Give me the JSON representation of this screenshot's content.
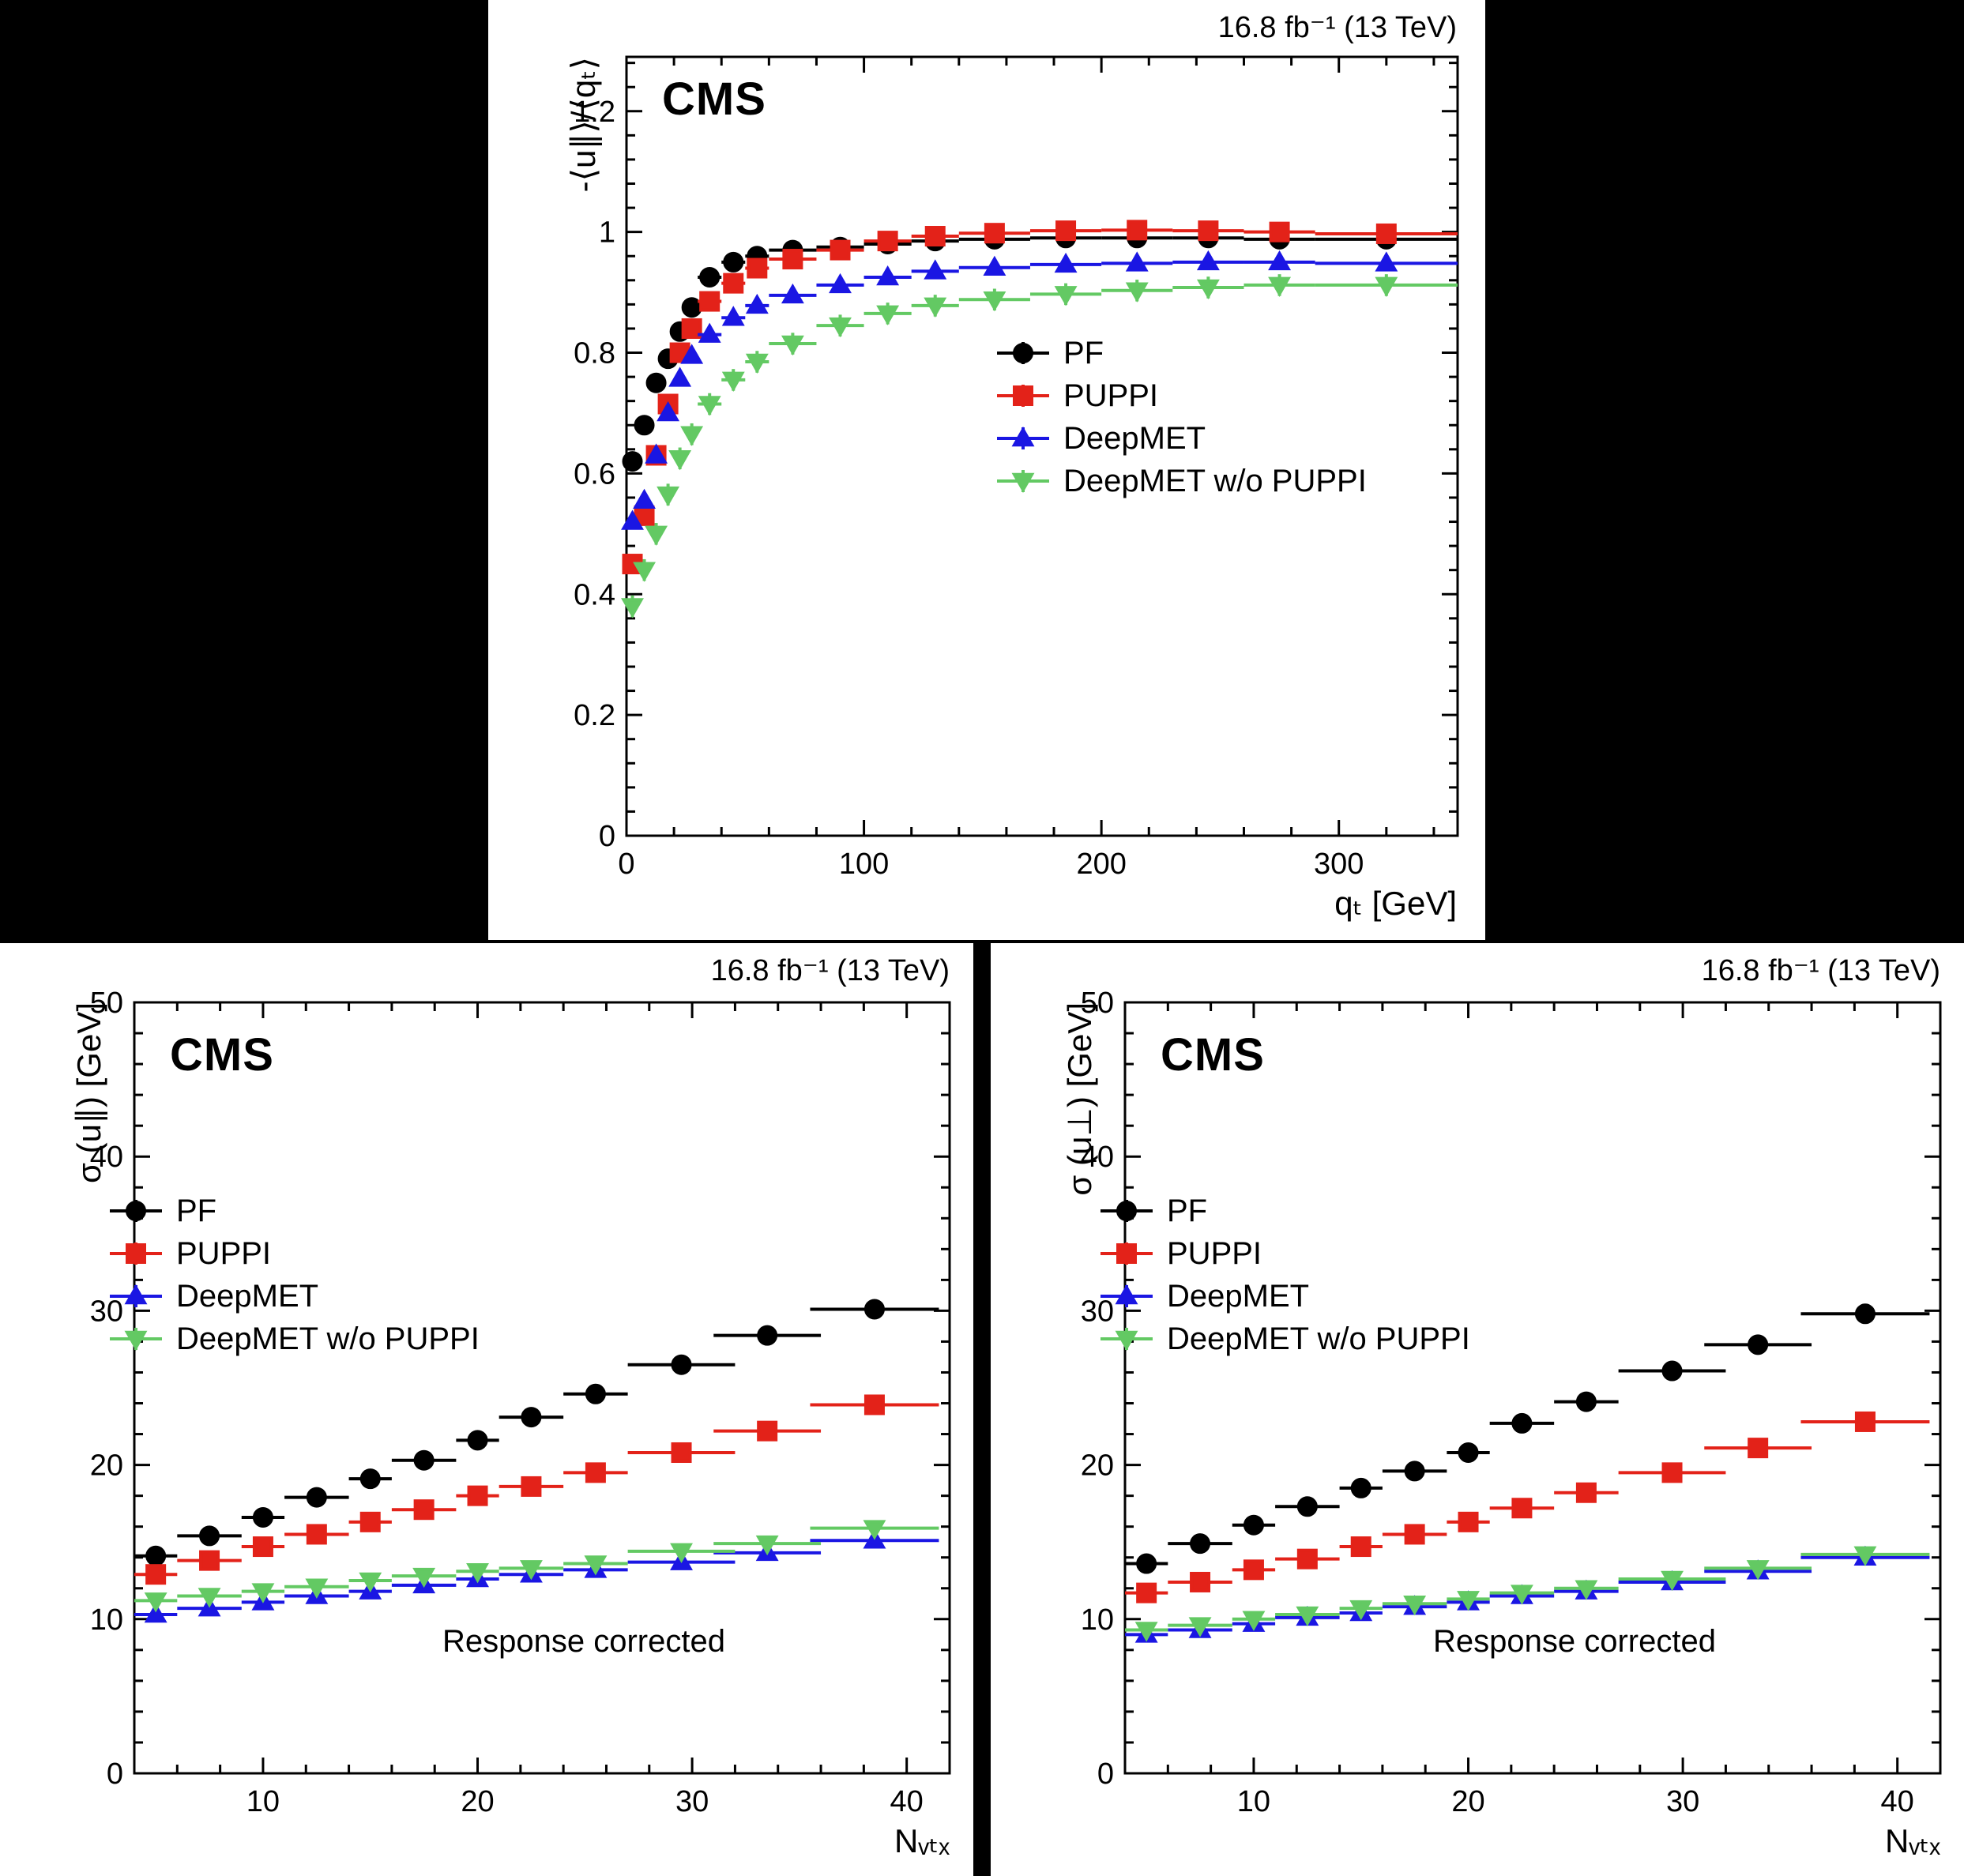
{
  "page_background": "#000000",
  "chart_data": [
    {
      "type": "scatter",
      "name": "response-vs-qt",
      "cms": "CMS",
      "lumi": "16.8 fb⁻¹ (13 TeV)",
      "xlabel": "qₜ [GeV]",
      "ylabel": "-⟨u∥⟩/⟨qₜ⟩",
      "xlim": [
        0,
        350
      ],
      "ylim": [
        0,
        1.29
      ],
      "xticks": [
        0,
        100,
        200,
        300
      ],
      "yticks": [
        0,
        0.2,
        0.4,
        0.6,
        0.8,
        1,
        1.2
      ],
      "x_minor_step": 20,
      "y_minor_step": 0.04,
      "x": [
        2.5,
        7.5,
        12.5,
        17.5,
        22.5,
        27.5,
        35,
        45,
        55,
        70,
        90,
        110,
        130,
        155,
        185,
        215,
        245,
        275,
        320
      ],
      "xerr": [
        2.5,
        2.5,
        2.5,
        2.5,
        2.5,
        2.5,
        5,
        5,
        5,
        10,
        10,
        10,
        10,
        15,
        15,
        15,
        15,
        15,
        30
      ],
      "series": [
        {
          "name": "PF",
          "color": "#000000",
          "marker": "circle",
          "yerr": 0.01,
          "values": [
            0.62,
            0.68,
            0.75,
            0.79,
            0.835,
            0.875,
            0.925,
            0.95,
            0.96,
            0.97,
            0.975,
            0.98,
            0.985,
            0.988,
            0.99,
            0.99,
            0.99,
            0.988,
            0.988
          ]
        },
        {
          "name": "PUPPI",
          "color": "#e32219",
          "marker": "square",
          "yerr": 0.014,
          "values": [
            0.45,
            0.53,
            0.63,
            0.715,
            0.8,
            0.84,
            0.885,
            0.915,
            0.94,
            0.955,
            0.97,
            0.985,
            0.993,
            0.998,
            1.002,
            1.003,
            1.002,
            1.0,
            0.997
          ]
        },
        {
          "name": "DeepMET",
          "color": "#1a16e3",
          "marker": "triangle-up",
          "yerr": 0.012,
          "values": [
            0.52,
            0.555,
            0.63,
            0.7,
            0.757,
            0.795,
            0.83,
            0.858,
            0.878,
            0.895,
            0.912,
            0.925,
            0.935,
            0.941,
            0.946,
            0.948,
            0.95,
            0.95,
            0.948
          ]
        },
        {
          "name": "DeepMET w/o PUPPI",
          "color": "#63c963",
          "marker": "triangle-down",
          "yerr": 0.018,
          "values": [
            0.38,
            0.44,
            0.5,
            0.565,
            0.625,
            0.665,
            0.715,
            0.755,
            0.785,
            0.815,
            0.845,
            0.865,
            0.878,
            0.888,
            0.897,
            0.903,
            0.908,
            0.912,
            0.912
          ]
        }
      ]
    },
    {
      "type": "scatter",
      "name": "sigma-u-parallel-vs-nvtx",
      "cms": "CMS",
      "lumi": "16.8 fb⁻¹ (13 TeV)",
      "xlabel": "Nᵥₜₓ",
      "ylabel": "σ (u∥) [GeV]",
      "annotation": "Response corrected",
      "xlim": [
        4,
        42
      ],
      "ylim": [
        0,
        50
      ],
      "xticks": [
        10,
        20,
        30,
        40
      ],
      "yticks": [
        0,
        10,
        20,
        30,
        40,
        50
      ],
      "x_minor_step": 2,
      "y_minor_step": 2,
      "x": [
        5,
        7.5,
        10,
        12.5,
        15,
        17.5,
        20,
        22.5,
        25.5,
        29.5,
        33.5,
        38.5
      ],
      "xerr": [
        1,
        1.5,
        1,
        1.5,
        1,
        1.5,
        1,
        1.5,
        1.5,
        2.5,
        2.5,
        3
      ],
      "series": [
        {
          "name": "PF",
          "color": "#000000",
          "marker": "circle",
          "yerr": 0.2,
          "values": [
            14.1,
            15.4,
            16.6,
            17.9,
            19.1,
            20.3,
            21.6,
            23.1,
            24.6,
            26.5,
            28.4,
            30.1
          ]
        },
        {
          "name": "PUPPI",
          "color": "#e32219",
          "marker": "square",
          "yerr": 0.2,
          "values": [
            12.9,
            13.8,
            14.7,
            15.5,
            16.3,
            17.1,
            18.0,
            18.6,
            19.5,
            20.8,
            22.2,
            23.9
          ]
        },
        {
          "name": "DeepMET",
          "color": "#1a16e3",
          "marker": "triangle-up",
          "yerr": 0.15,
          "values": [
            10.3,
            10.7,
            11.1,
            11.5,
            11.8,
            12.2,
            12.6,
            12.9,
            13.2,
            13.7,
            14.3,
            15.1
          ]
        },
        {
          "name": "DeepMET w/o PUPPI",
          "color": "#63c963",
          "marker": "triangle-down",
          "yerr": 0.15,
          "values": [
            11.2,
            11.5,
            11.8,
            12.1,
            12.5,
            12.8,
            13.1,
            13.3,
            13.6,
            14.4,
            14.9,
            15.9
          ]
        }
      ]
    },
    {
      "type": "scatter",
      "name": "sigma-u-perp-vs-nvtx",
      "cms": "CMS",
      "lumi": "16.8 fb⁻¹ (13 TeV)",
      "xlabel": "Nᵥₜₓ",
      "ylabel": "σ (u⊥) [GeV]",
      "annotation": "Response corrected",
      "xlim": [
        4,
        42
      ],
      "ylim": [
        0,
        50
      ],
      "xticks": [
        10,
        20,
        30,
        40
      ],
      "yticks": [
        0,
        10,
        20,
        30,
        40,
        50
      ],
      "x_minor_step": 2,
      "y_minor_step": 2,
      "x": [
        5,
        7.5,
        10,
        12.5,
        15,
        17.5,
        20,
        22.5,
        25.5,
        29.5,
        33.5,
        38.5
      ],
      "xerr": [
        1,
        1.5,
        1,
        1.5,
        1,
        1.5,
        1,
        1.5,
        1.5,
        2.5,
        2.5,
        3
      ],
      "series": [
        {
          "name": "PF",
          "color": "#000000",
          "marker": "circle",
          "yerr": 0.2,
          "values": [
            13.6,
            14.9,
            16.1,
            17.3,
            18.5,
            19.6,
            20.8,
            22.7,
            24.1,
            26.1,
            27.8,
            29.8
          ]
        },
        {
          "name": "PUPPI",
          "color": "#e32219",
          "marker": "square",
          "yerr": 0.2,
          "values": [
            11.7,
            12.4,
            13.2,
            13.9,
            14.7,
            15.5,
            16.3,
            17.2,
            18.2,
            19.5,
            21.1,
            22.8
          ]
        },
        {
          "name": "DeepMET",
          "color": "#1a16e3",
          "marker": "triangle-up",
          "yerr": 0.15,
          "values": [
            9.0,
            9.3,
            9.7,
            10.1,
            10.4,
            10.8,
            11.1,
            11.5,
            11.8,
            12.4,
            13.1,
            14.0
          ]
        },
        {
          "name": "DeepMET w/o PUPPI",
          "color": "#63c963",
          "marker": "triangle-down",
          "yerr": 0.15,
          "values": [
            9.3,
            9.6,
            10.0,
            10.3,
            10.7,
            11.0,
            11.3,
            11.7,
            12.0,
            12.6,
            13.3,
            14.2
          ]
        }
      ]
    }
  ]
}
